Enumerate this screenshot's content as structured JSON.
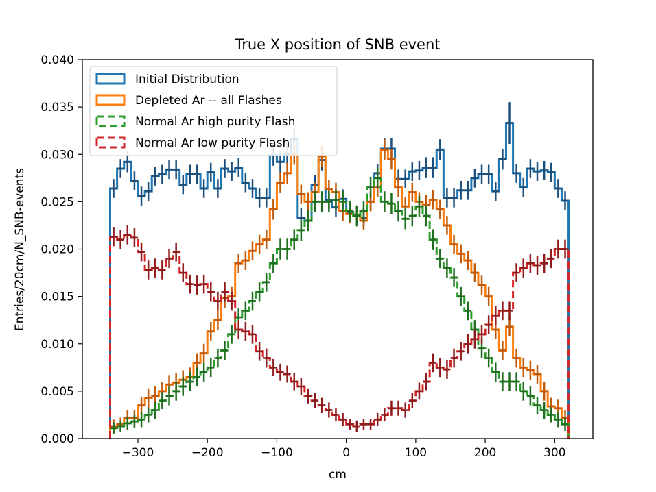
{
  "chart_data": {
    "type": "step-histogram",
    "title": "True X position of SNB event",
    "xlabel": "cm",
    "ylabel": "Entries/20cm/N_SNB-events",
    "xlim": [
      -380,
      355
    ],
    "ylim": [
      0,
      0.04
    ],
    "x_ticks": [
      -300,
      -200,
      -100,
      0,
      100,
      200,
      300
    ],
    "x_tick_labels": [
      "−300",
      "−200",
      "−100",
      "0",
      "100",
      "200",
      "300"
    ],
    "y_ticks": [
      0,
      0.005,
      0.01,
      0.015,
      0.02,
      0.025,
      0.03,
      0.035,
      0.04
    ],
    "y_tick_labels": [
      "0.000",
      "0.005",
      "0.010",
      "0.015",
      "0.020",
      "0.025",
      "0.030",
      "0.035",
      "0.040"
    ],
    "grid": false,
    "legend_position": "top-left",
    "bin_edges": [
      -340,
      -330,
      -320,
      -310,
      -300,
      -290,
      -280,
      -270,
      -260,
      -250,
      -240,
      -230,
      -220,
      -210,
      -200,
      -190,
      -180,
      -170,
      -160,
      -150,
      -140,
      -130,
      -120,
      -110,
      -100,
      -90,
      -80,
      -70,
      -60,
      -50,
      -40,
      -30,
      -20,
      -10,
      0,
      10,
      20,
      30,
      40,
      50,
      60,
      70,
      80,
      90,
      100,
      110,
      120,
      130,
      140,
      150,
      160,
      170,
      180,
      190,
      200,
      210,
      220,
      230,
      240,
      250,
      260,
      270,
      280,
      290,
      300,
      310,
      320
    ],
    "series": [
      {
        "name": "Initial Distribution",
        "color": "#1f77b4",
        "dark_color": "#1c4f7c",
        "style": "solid",
        "values": [
          0.0264,
          0.0285,
          0.0292,
          0.0272,
          0.0256,
          0.0261,
          0.0277,
          0.0279,
          0.0284,
          0.0284,
          0.0268,
          0.0279,
          0.0279,
          0.0264,
          0.0281,
          0.0264,
          0.0285,
          0.0282,
          0.0286,
          0.027,
          0.0264,
          0.0254,
          0.0254,
          0.0299,
          0.0292,
          0.03,
          0.0316,
          0.0233,
          0.023,
          0.0268,
          0.0294,
          0.0252,
          0.0244,
          0.0253,
          0.0239,
          0.0236,
          0.0233,
          0.025,
          0.028,
          0.0306,
          0.0306,
          0.0274,
          0.0274,
          0.0282,
          0.0283,
          0.0286,
          0.0286,
          0.0305,
          0.0254,
          0.0254,
          0.0262,
          0.0262,
          0.0275,
          0.0279,
          0.0279,
          0.0261,
          0.0295,
          0.0333,
          0.028,
          0.0265,
          0.0285,
          0.0282,
          0.0283,
          0.0281,
          0.0264,
          0.0251
        ],
        "errors": [
          0.001,
          0.001,
          0.0011,
          0.001,
          0.001,
          0.001,
          0.001,
          0.001,
          0.001,
          0.001,
          0.001,
          0.001,
          0.001,
          0.001,
          0.001,
          0.001,
          0.001,
          0.001,
          0.001,
          0.001,
          0.001,
          0.001,
          0.001,
          0.0011,
          0.0011,
          0.0011,
          0.0011,
          0.001,
          0.001,
          0.001,
          0.0011,
          0.001,
          0.001,
          0.001,
          0.001,
          0.001,
          0.001,
          0.001,
          0.001,
          0.0011,
          0.0011,
          0.001,
          0.001,
          0.001,
          0.001,
          0.0011,
          0.0011,
          0.0011,
          0.001,
          0.001,
          0.001,
          0.001,
          0.001,
          0.001,
          0.001,
          0.001,
          0.0011,
          0.0022,
          0.001,
          0.001,
          0.001,
          0.001,
          0.001,
          0.001,
          0.001,
          0.001
        ]
      },
      {
        "name": "Depleted Ar -- all Flashes",
        "color": "#ff7f0e",
        "dark_color": "#c05a08",
        "style": "solid",
        "values": [
          0.0013,
          0.0015,
          0.0022,
          0.0022,
          0.0035,
          0.0043,
          0.0045,
          0.005,
          0.0057,
          0.0059,
          0.0062,
          0.0065,
          0.008,
          0.009,
          0.0113,
          0.0125,
          0.0148,
          0.015,
          0.0185,
          0.0188,
          0.0198,
          0.0205,
          0.021,
          0.0242,
          0.027,
          0.028,
          0.03,
          0.0258,
          0.025,
          0.026,
          0.0298,
          0.0263,
          0.026,
          0.024,
          0.0237,
          0.0235,
          0.023,
          0.025,
          0.0265,
          0.0305,
          0.0295,
          0.0265,
          0.0245,
          0.026,
          0.025,
          0.0247,
          0.0252,
          0.0242,
          0.0225,
          0.0205,
          0.0195,
          0.0188,
          0.0175,
          0.0162,
          0.015,
          0.0115,
          0.0093,
          0.0118,
          0.0085,
          0.0075,
          0.0072,
          0.0068,
          0.005,
          0.0034,
          0.0032,
          0.0022
        ],
        "errors": [
          0.0007,
          0.0007,
          0.0008,
          0.0008,
          0.0009,
          0.001,
          0.001,
          0.001,
          0.001,
          0.001,
          0.001,
          0.001,
          0.001,
          0.001,
          0.001,
          0.001,
          0.001,
          0.001,
          0.001,
          0.001,
          0.001,
          0.001,
          0.001,
          0.0011,
          0.0011,
          0.0011,
          0.0011,
          0.001,
          0.001,
          0.001,
          0.0011,
          0.001,
          0.001,
          0.001,
          0.001,
          0.001,
          0.001,
          0.001,
          0.001,
          0.0011,
          0.0011,
          0.001,
          0.001,
          0.001,
          0.001,
          0.001,
          0.001,
          0.001,
          0.001,
          0.001,
          0.001,
          0.001,
          0.001,
          0.001,
          0.001,
          0.001,
          0.001,
          0.001,
          0.001,
          0.001,
          0.001,
          0.001,
          0.001,
          0.0009,
          0.0009,
          0.0008
        ]
      },
      {
        "name": "Normal Ar high purity Flash",
        "color": "#2ca02c",
        "dark_color": "#1f6e1f",
        "style": "dashed",
        "values": [
          0.0011,
          0.0013,
          0.0016,
          0.0018,
          0.002,
          0.0025,
          0.003,
          0.004,
          0.0045,
          0.005,
          0.0055,
          0.006,
          0.0065,
          0.007,
          0.0075,
          0.0085,
          0.0093,
          0.011,
          0.0128,
          0.0135,
          0.0145,
          0.0155,
          0.0165,
          0.0185,
          0.02,
          0.02,
          0.021,
          0.022,
          0.023,
          0.025,
          0.025,
          0.025,
          0.0252,
          0.025,
          0.024,
          0.0235,
          0.024,
          0.0265,
          0.0275,
          0.025,
          0.0248,
          0.024,
          0.0232,
          0.0235,
          0.0245,
          0.0235,
          0.021,
          0.019,
          0.018,
          0.017,
          0.015,
          0.0135,
          0.0115,
          0.0095,
          0.0085,
          0.007,
          0.006,
          0.006,
          0.006,
          0.005,
          0.0045,
          0.0035,
          0.003,
          0.0025,
          0.002,
          0.0015
        ],
        "errors": [
          0.0006,
          0.0006,
          0.0007,
          0.0007,
          0.0008,
          0.0008,
          0.0009,
          0.0009,
          0.001,
          0.001,
          0.001,
          0.001,
          0.001,
          0.001,
          0.001,
          0.001,
          0.001,
          0.001,
          0.001,
          0.001,
          0.001,
          0.001,
          0.001,
          0.001,
          0.0011,
          0.0011,
          0.0011,
          0.0011,
          0.0011,
          0.0011,
          0.0011,
          0.0011,
          0.0011,
          0.0011,
          0.0011,
          0.0011,
          0.0011,
          0.0011,
          0.0011,
          0.0011,
          0.0011,
          0.0011,
          0.0011,
          0.0011,
          0.0011,
          0.0011,
          0.0011,
          0.001,
          0.001,
          0.001,
          0.001,
          0.001,
          0.001,
          0.001,
          0.001,
          0.001,
          0.001,
          0.001,
          0.001,
          0.001,
          0.001,
          0.0009,
          0.0009,
          0.0008,
          0.0008,
          0.0007
        ]
      },
      {
        "name": "Normal Ar low purity Flash",
        "color": "#d62728",
        "dark_color": "#8f1a1b",
        "style": "dashed",
        "values": [
          0.0213,
          0.021,
          0.0215,
          0.0212,
          0.0197,
          0.0178,
          0.018,
          0.0178,
          0.019,
          0.0197,
          0.0175,
          0.0163,
          0.0162,
          0.0163,
          0.0155,
          0.0145,
          0.0155,
          0.0145,
          0.0115,
          0.0113,
          0.011,
          0.0092,
          0.0085,
          0.0075,
          0.007,
          0.0068,
          0.006,
          0.0055,
          0.0045,
          0.004,
          0.0035,
          0.003,
          0.0025,
          0.002,
          0.0015,
          0.0013,
          0.0015,
          0.0015,
          0.002,
          0.0025,
          0.0032,
          0.0032,
          0.003,
          0.004,
          0.005,
          0.006,
          0.008,
          0.0075,
          0.0073,
          0.0085,
          0.0092,
          0.01,
          0.0105,
          0.011,
          0.012,
          0.013,
          0.0135,
          0.0135,
          0.0175,
          0.018,
          0.0185,
          0.0183,
          0.0185,
          0.019,
          0.02,
          0.02
        ],
        "errors": [
          0.001,
          0.001,
          0.001,
          0.001,
          0.001,
          0.001,
          0.001,
          0.001,
          0.001,
          0.001,
          0.001,
          0.001,
          0.001,
          0.001,
          0.001,
          0.001,
          0.001,
          0.001,
          0.001,
          0.001,
          0.001,
          0.001,
          0.001,
          0.0009,
          0.0009,
          0.0009,
          0.0009,
          0.0009,
          0.0008,
          0.0008,
          0.0008,
          0.0008,
          0.0007,
          0.0007,
          0.0006,
          0.0006,
          0.0006,
          0.0006,
          0.0007,
          0.0007,
          0.0008,
          0.0008,
          0.0008,
          0.0008,
          0.0009,
          0.0009,
          0.001,
          0.001,
          0.001,
          0.001,
          0.001,
          0.001,
          0.001,
          0.001,
          0.001,
          0.001,
          0.001,
          0.001,
          0.001,
          0.001,
          0.001,
          0.001,
          0.001,
          0.001,
          0.001,
          0.001
        ]
      }
    ]
  }
}
